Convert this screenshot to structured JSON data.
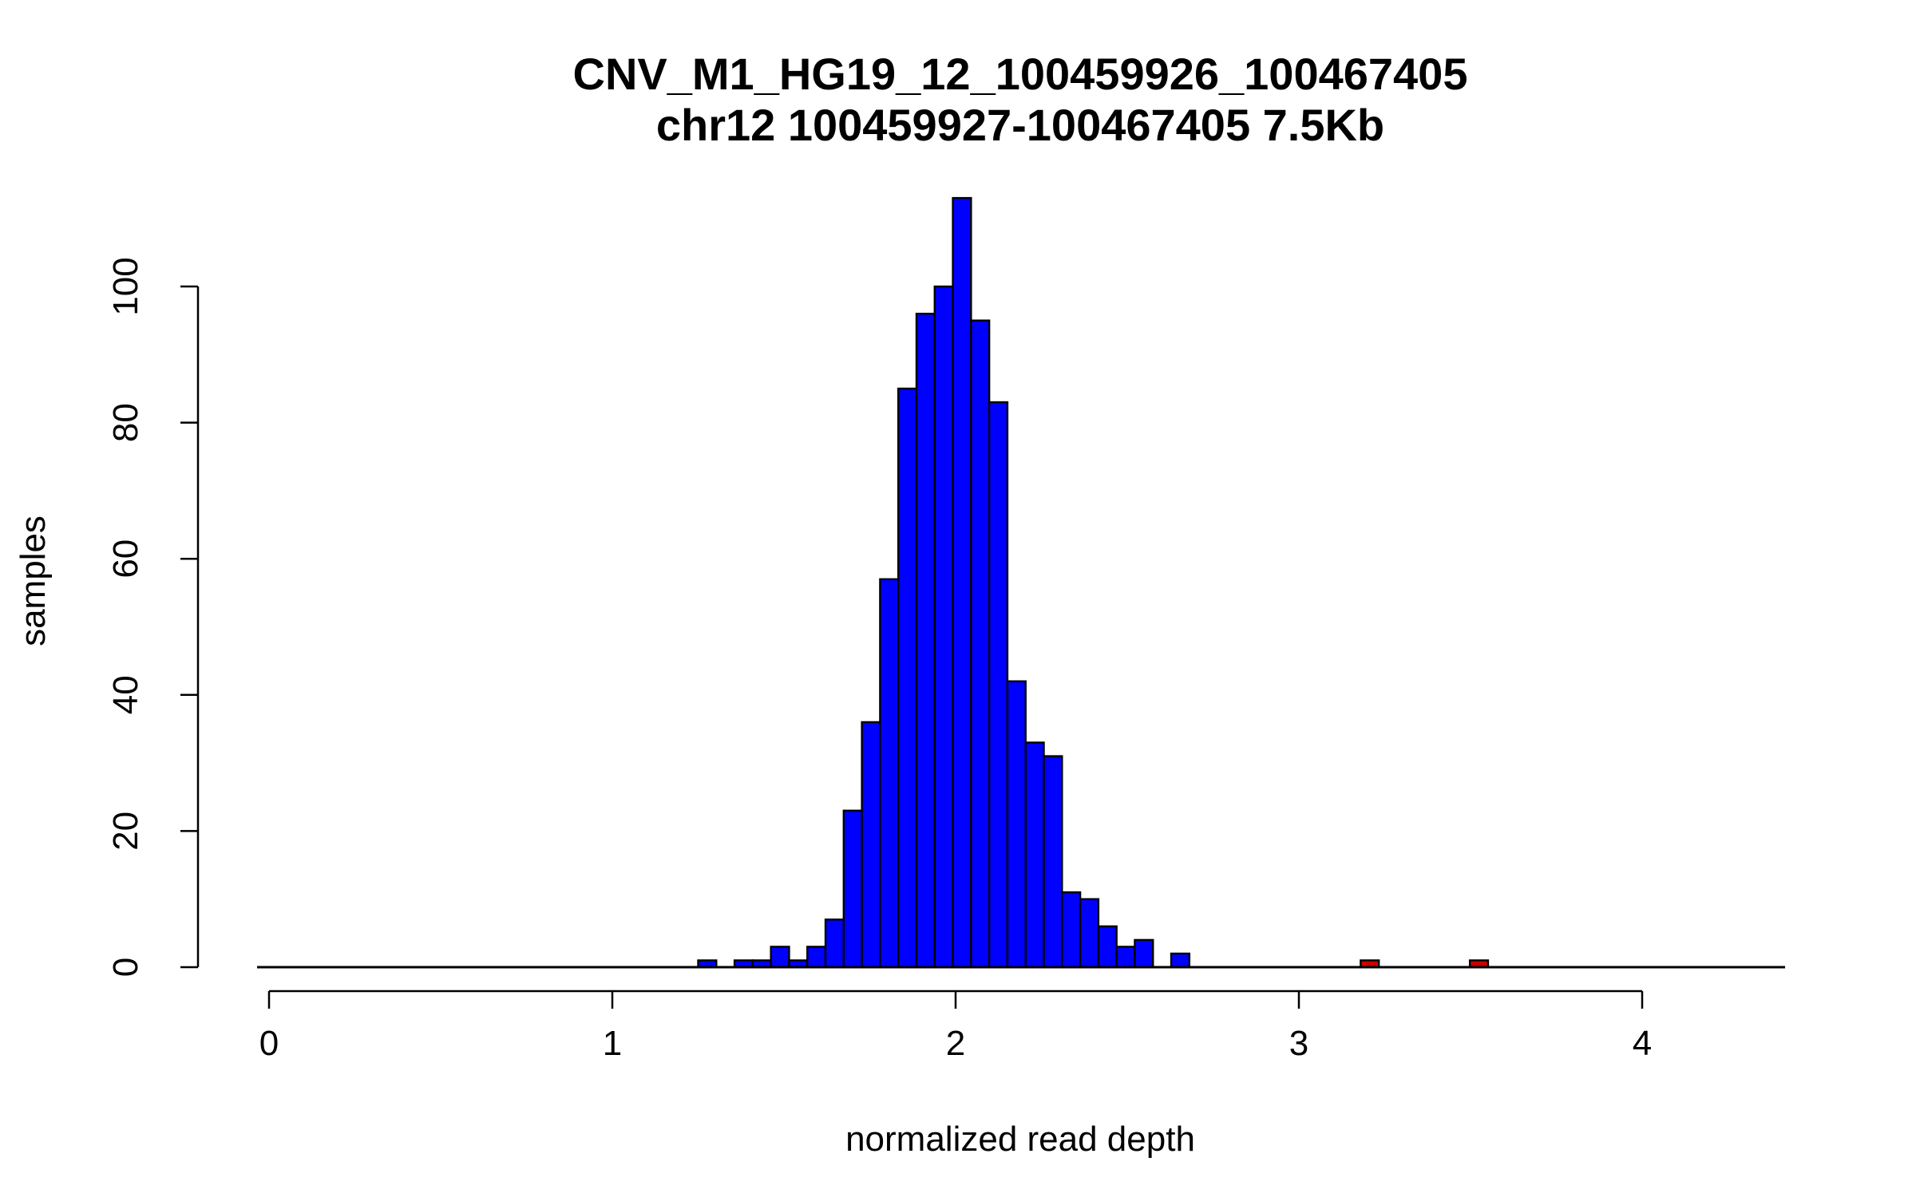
{
  "chart_data": {
    "type": "bar",
    "title": "CNV_M1_HG19_12_100459926_100467405",
    "subtitle": "chr12 100459927-100467405 7.5Kb",
    "xlabel": "normalized read depth",
    "ylabel": "samples",
    "xlim": [
      -0.02,
      4.4
    ],
    "ylim": [
      0,
      113
    ],
    "x_ticks": [
      "0",
      "1",
      "2",
      "3",
      "4"
    ],
    "y_ticks": [
      "0",
      "20",
      "40",
      "60",
      "80",
      "100"
    ],
    "bin_width": 0.053,
    "series": [
      {
        "color": "#0000ff",
        "values": [
          {
            "x0": 1.25,
            "count": 1
          },
          {
            "x0": 1.356,
            "count": 1
          },
          {
            "x0": 1.409,
            "count": 1
          },
          {
            "x0": 1.462,
            "count": 3
          },
          {
            "x0": 1.515,
            "count": 1
          },
          {
            "x0": 1.568,
            "count": 3
          },
          {
            "x0": 1.621,
            "count": 7
          },
          {
            "x0": 1.674,
            "count": 23
          },
          {
            "x0": 1.727,
            "count": 36
          },
          {
            "x0": 1.78,
            "count": 57
          },
          {
            "x0": 1.833,
            "count": 85
          },
          {
            "x0": 1.886,
            "count": 96
          },
          {
            "x0": 1.939,
            "count": 100
          },
          {
            "x0": 1.992,
            "count": 113
          },
          {
            "x0": 2.045,
            "count": 95
          },
          {
            "x0": 2.098,
            "count": 83
          },
          {
            "x0": 2.151,
            "count": 42
          },
          {
            "x0": 2.204,
            "count": 33
          },
          {
            "x0": 2.257,
            "count": 31
          },
          {
            "x0": 2.31,
            "count": 11
          },
          {
            "x0": 2.363,
            "count": 10
          },
          {
            "x0": 2.416,
            "count": 6
          },
          {
            "x0": 2.469,
            "count": 3
          },
          {
            "x0": 2.522,
            "count": 4
          },
          {
            "x0": 2.628,
            "count": 2
          }
        ]
      },
      {
        "color": "#cc0000",
        "values": [
          {
            "x0": 3.18,
            "count": 1
          },
          {
            "x0": 3.498,
            "count": 1
          }
        ]
      }
    ],
    "background": "#ffffff",
    "grid": false,
    "legend": "none"
  }
}
